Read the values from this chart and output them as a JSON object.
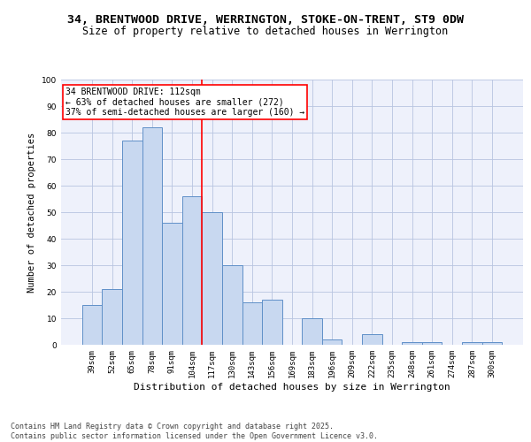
{
  "title1": "34, BRENTWOOD DRIVE, WERRINGTON, STOKE-ON-TRENT, ST9 0DW",
  "title2": "Size of property relative to detached houses in Werrington",
  "xlabel": "Distribution of detached houses by size in Werrington",
  "ylabel": "Number of detached properties",
  "categories": [
    "39sqm",
    "52sqm",
    "65sqm",
    "78sqm",
    "91sqm",
    "104sqm",
    "117sqm",
    "130sqm",
    "143sqm",
    "156sqm",
    "169sqm",
    "183sqm",
    "196sqm",
    "209sqm",
    "222sqm",
    "235sqm",
    "248sqm",
    "261sqm",
    "274sqm",
    "287sqm",
    "300sqm"
  ],
  "values": [
    15,
    21,
    77,
    82,
    46,
    56,
    50,
    30,
    16,
    17,
    0,
    10,
    2,
    0,
    4,
    0,
    1,
    1,
    0,
    1,
    1
  ],
  "bar_color": "#c8d8f0",
  "bar_edge_color": "#6090c8",
  "bar_alpha": 1.0,
  "vline_x_index": 5.5,
  "vline_color": "red",
  "annotation_line1": "34 BRENTWOOD DRIVE: 112sqm",
  "annotation_line2": "← 63% of detached houses are smaller (272)",
  "annotation_line3": "37% of semi-detached houses are larger (160) →",
  "ylim": [
    0,
    100
  ],
  "yticks": [
    0,
    10,
    20,
    30,
    40,
    50,
    60,
    70,
    80,
    90,
    100
  ],
  "background_color": "#eef1fb",
  "grid_color": "#b8c4e0",
  "footer": "Contains HM Land Registry data © Crown copyright and database right 2025.\nContains public sector information licensed under the Open Government Licence v3.0.",
  "title1_fontsize": 9.5,
  "title2_fontsize": 8.5,
  "xlabel_fontsize": 8,
  "ylabel_fontsize": 7.5,
  "tick_fontsize": 6.5,
  "annotation_fontsize": 7,
  "footer_fontsize": 6
}
